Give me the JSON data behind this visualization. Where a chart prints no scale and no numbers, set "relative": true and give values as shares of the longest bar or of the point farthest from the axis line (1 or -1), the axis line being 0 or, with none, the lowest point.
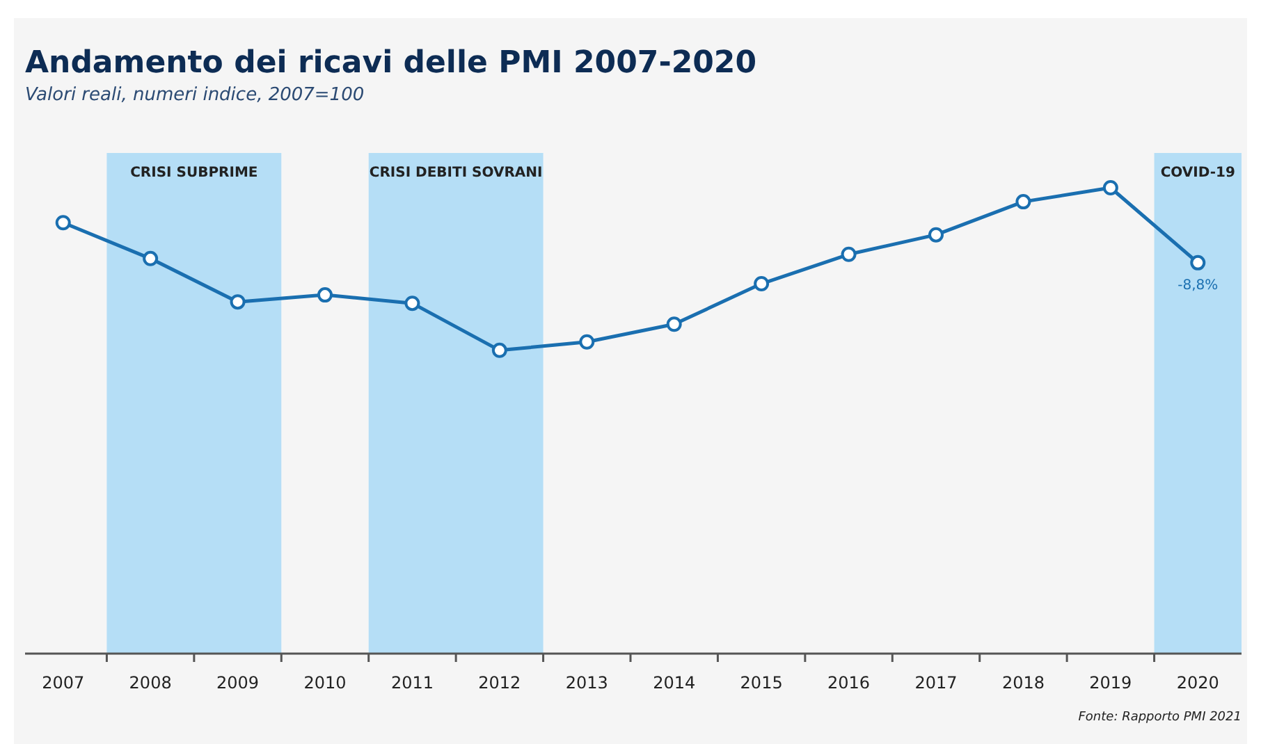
{
  "chart_data": {
    "type": "line",
    "title": "Andamento dei ricavi delle PMI 2007-2020",
    "subtitle": "Valori reali, numeri indice, 2007=100",
    "categories": [
      "2007",
      "2008",
      "2009",
      "2010",
      "2011",
      "2012",
      "2013",
      "2014",
      "2015",
      "2016",
      "2017",
      "2018",
      "2019",
      "2020"
    ],
    "relative": true,
    "series": [
      {
        "color": "#1a6fb0",
        "values": [
          0.925,
          0.848,
          0.755,
          0.77,
          0.752,
          0.651,
          0.669,
          0.707,
          0.794,
          0.857,
          0.899,
          0.97,
          1,
          0.839
        ]
      }
    ],
    "bands": [
      {
        "axis": "x",
        "from": "2008",
        "to": "2009",
        "label": "CRISI SUBPRIME",
        "color": "#b5def6"
      },
      {
        "axis": "x",
        "from": "2011",
        "to": "2012",
        "label": "CRISI DEBITI SOVRANI",
        "color": "#b5def6"
      },
      {
        "axis": "x",
        "from": "2020",
        "to": "2020",
        "label": "COVID-19",
        "color": "#b5def6"
      }
    ],
    "marker": "circle",
    "line_style": "solid",
    "annotations": [
      {
        "text": "-8,8%",
        "x": "2020",
        "y": 0.839
      },
      "Fonte: Rapporto PMI 2021"
    ]
  }
}
